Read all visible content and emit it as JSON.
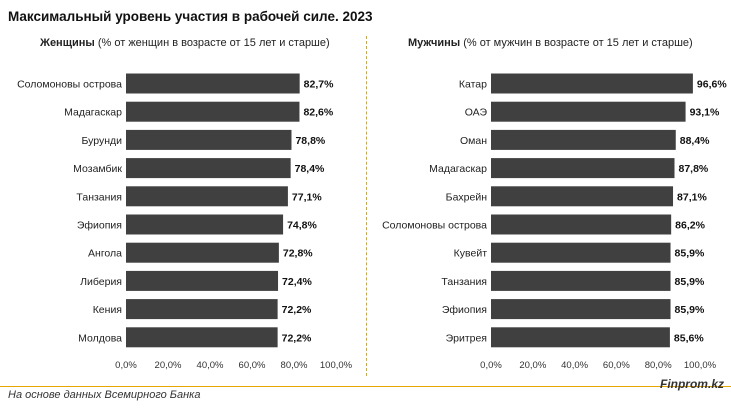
{
  "title": "Максимальный уровень участия в рабочей силе. 2023",
  "left_panel": {
    "bold": "Женщины",
    "rest": " (% от женщин в возрасте от 15 лет и старше)"
  },
  "right_panel": {
    "bold": "Мужчины",
    "rest": " (% от мужчин в возрасте от 15 лет и старше)"
  },
  "footer": {
    "source": "На основе данных Всемирного Банка",
    "brand": "Finprom.kz"
  },
  "colors": {
    "bar": "#404040",
    "divider": "#e0a800",
    "rule": "#e6a700"
  },
  "chart_data": [
    {
      "type": "bar",
      "orientation": "horizontal",
      "title": "Женщины",
      "categories": [
        "Соломоновы острова",
        "Мадагаскар",
        "Бурунди",
        "Мозамбик",
        "Танзания",
        "Эфиопия",
        "Ангола",
        "Либерия",
        "Кения",
        "Молдова"
      ],
      "values": [
        82.7,
        82.6,
        78.8,
        78.4,
        77.1,
        74.8,
        72.8,
        72.4,
        72.2,
        72.2
      ],
      "value_labels": [
        "82,7%",
        "82,6%",
        "78,8%",
        "78,4%",
        "77,1%",
        "74,8%",
        "72,8%",
        "72,4%",
        "72,2%",
        "72,2%"
      ],
      "xlim": [
        0,
        100
      ],
      "x_ticks": [
        "0,0%",
        "20,0%",
        "40,0%",
        "60,0%",
        "80,0%",
        "100,0%"
      ],
      "grid": false
    },
    {
      "type": "bar",
      "orientation": "horizontal",
      "title": "Мужчины",
      "categories": [
        "Катар",
        "ОАЭ",
        "Оман",
        "Мадагаскар",
        "Бахрейн",
        "Соломоновы острова",
        "Кувейт",
        "Танзания",
        "Эфиопия",
        "Эритрея"
      ],
      "values": [
        96.6,
        93.1,
        88.4,
        87.8,
        87.1,
        86.2,
        85.9,
        85.9,
        85.9,
        85.6
      ],
      "value_labels": [
        "96,6%",
        "93,1%",
        "88,4%",
        "87,8%",
        "87,1%",
        "86,2%",
        "85,9%",
        "85,9%",
        "85,9%",
        "85,6%"
      ],
      "xlim": [
        0,
        100
      ],
      "x_ticks": [
        "0,0%",
        "20,0%",
        "40,0%",
        "60,0%",
        "80,0%",
        "100,0%"
      ],
      "grid": false
    }
  ]
}
